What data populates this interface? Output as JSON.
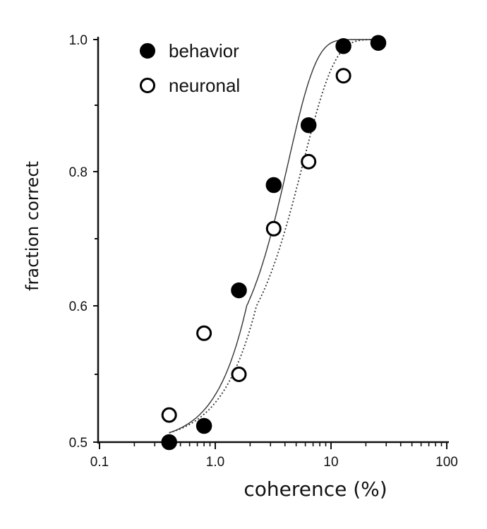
{
  "chart_data": {
    "type": "scatter",
    "title": "",
    "xlabel": "coherence (%)",
    "ylabel": "fraction correct",
    "xscale": "log",
    "xlim": [
      0.1,
      100
    ],
    "ylim": [
      0.5,
      1.0
    ],
    "x_tick_labels": [
      "0.1",
      "1.0",
      "10",
      "100"
    ],
    "x_ticks": [
      0.1,
      1,
      10,
      100
    ],
    "y_tick_labels": [
      "0.5",
      "0.6",
      "0.8",
      "1.0"
    ],
    "y_ticks": [
      0.5,
      0.6,
      0.8,
      1.0
    ],
    "y_minor_ticks": [
      0.55,
      0.7,
      0.9
    ],
    "grid": false,
    "legend_position": "top-left",
    "series": [
      {
        "name": "behavior",
        "marker": "filled-circle",
        "color": "#000000",
        "line_style": "solid",
        "x": [
          0.4,
          0.8,
          1.6,
          3.2,
          6.4,
          12.8,
          25.6
        ],
        "y": [
          0.5,
          0.512,
          0.623,
          0.78,
          0.87,
          0.99,
          0.995
        ],
        "fit_alpha": 4.3,
        "fit_beta": 1.8
      },
      {
        "name": "neuronal",
        "marker": "open-circle",
        "color": "#000000",
        "line_style": "dotted",
        "x": [
          0.4,
          0.8,
          1.6,
          3.2,
          6.4,
          12.8
        ],
        "y": [
          0.52,
          0.58,
          0.55,
          0.715,
          0.815,
          0.945
        ],
        "fit_alpha": 5.8,
        "fit_beta": 1.6
      }
    ]
  }
}
